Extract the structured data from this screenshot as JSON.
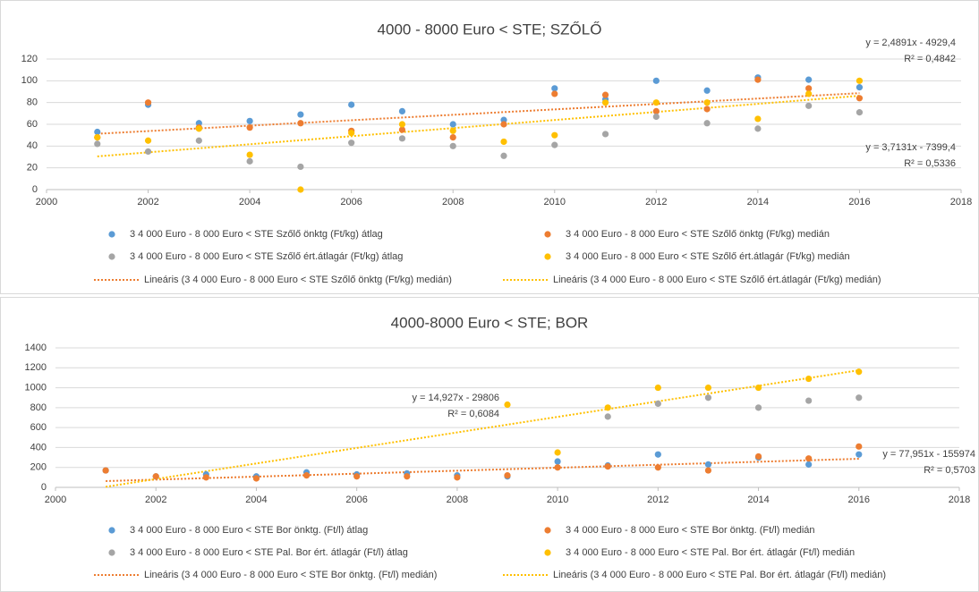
{
  "chart_data": [
    {
      "type": "scatter",
      "title": "4000 - 8000 Euro < STE; SZŐLŐ",
      "x": [
        2001,
        2002,
        2003,
        2004,
        2005,
        2006,
        2007,
        2008,
        2009,
        2010,
        2011,
        2012,
        2013,
        2014,
        2015,
        2016
      ],
      "xlim": [
        2000,
        2018
      ],
      "xticks": [
        2000,
        2002,
        2004,
        2006,
        2008,
        2010,
        2012,
        2014,
        2016,
        2018
      ],
      "ylim": [
        0,
        120
      ],
      "yticks": [
        0,
        20,
        40,
        60,
        80,
        100,
        120
      ],
      "grid": true,
      "series": [
        {
          "name": "3 4 000 Euro - 8 000 Euro < STE Szőlő önktg (Ft/kg) átlag",
          "color": "#5b9bd5",
          "values": [
            53,
            78,
            61,
            63,
            69,
            78,
            72,
            60,
            64,
            93,
            83,
            100,
            91,
            103,
            101,
            94
          ]
        },
        {
          "name": "3 4 000 Euro - 8 000 Euro < STE Szőlő önktg (Ft/kg) medián",
          "color": "#ed7d31",
          "values": [
            48,
            80,
            57,
            57,
            61,
            54,
            55,
            48,
            60,
            88,
            87,
            72,
            74,
            101,
            93,
            84
          ]
        },
        {
          "name": "3 4 000 Euro - 8 000 Euro < STE Szőlő ért.átlagár (Ft/kg) átlag",
          "color": "#a5a5a5",
          "values": [
            42,
            35,
            45,
            26,
            21,
            43,
            47,
            40,
            31,
            41,
            51,
            67,
            61,
            56,
            77,
            71
          ]
        },
        {
          "name": "3 4 000 Euro - 8 000 Euro < STE Szőlő ért.átlagár (Ft/kg) medián",
          "color": "#ffc000",
          "values": [
            48,
            45,
            56,
            32,
            0,
            52,
            60,
            54,
            44,
            50,
            80,
            80,
            80,
            65,
            88,
            100
          ]
        }
      ],
      "trendlines": [
        {
          "name": "Lineáris (3 4 000 Euro - 8 000 Euro < STE Szőlő önktg (Ft/kg) medián)",
          "color": "#ed7d31",
          "slope": 2.4891,
          "intercept": -4929.4,
          "equation": "y = 2,4891x - 4929,4",
          "r2": "R² = 0,4842"
        },
        {
          "name": "Lineáris (3 4 000 Euro - 8 000 Euro < STE Szőlő ért.átlagár (Ft/kg) medián)",
          "color": "#ffc000",
          "slope": 3.7131,
          "intercept": -7399.4,
          "equation": "y = 3,7131x - 7399,4",
          "r2": "R² = 0,5336"
        }
      ]
    },
    {
      "type": "scatter",
      "title": "4000-8000 Euro < STE; BOR",
      "x": [
        2001,
        2002,
        2003,
        2004,
        2005,
        2006,
        2007,
        2008,
        2009,
        2010,
        2011,
        2012,
        2013,
        2014,
        2015,
        2016
      ],
      "xlim": [
        2000,
        2018
      ],
      "xticks": [
        2000,
        2002,
        2004,
        2006,
        2008,
        2010,
        2012,
        2014,
        2016,
        2018
      ],
      "ylim": [
        0,
        1400
      ],
      "yticks": [
        0,
        200,
        400,
        600,
        800,
        1000,
        1200,
        1400
      ],
      "grid": true,
      "series": [
        {
          "name": "3 4 000 Euro - 8 000 Euro < STE Bor önktg. (Ft/l) átlag",
          "color": "#5b9bd5",
          "values": [
            170,
            110,
            130,
            110,
            150,
            130,
            140,
            120,
            110,
            260,
            220,
            330,
            230,
            300,
            230,
            330
          ]
        },
        {
          "name": "3 4 000 Euro - 8 000 Euro < STE Bor önktg. (Ft/l) medián",
          "color": "#ed7d31",
          "values": [
            170,
            110,
            100,
            90,
            120,
            110,
            110,
            100,
            120,
            200,
            210,
            200,
            170,
            310,
            290,
            410
          ]
        },
        {
          "name": "3 4 000 Euro - 8 000 Euro < STE Pal. Bor ért. átlagár (Ft/l) átlag",
          "color": "#a5a5a5",
          "values": [
            null,
            null,
            null,
            null,
            null,
            null,
            null,
            null,
            null,
            null,
            710,
            840,
            900,
            800,
            870,
            900
          ]
        },
        {
          "name": "3 4 000 Euro - 8 000 Euro < STE Pal. Bor ért. átlagár (Ft/l) medián",
          "color": "#ffc000",
          "values": [
            null,
            null,
            null,
            null,
            null,
            null,
            null,
            null,
            830,
            350,
            800,
            1000,
            1000,
            1000,
            1090,
            1160
          ]
        }
      ],
      "trendlines": [
        {
          "name": "Lineáris (3 4 000 Euro - 8 000 Euro < STE Bor önktg. (Ft/l) medián)",
          "color": "#ed7d31",
          "slope": 14.927,
          "intercept": -29806,
          "equation": "y = 14,927x - 29806",
          "r2": "R² = 0,6084"
        },
        {
          "name": "Lineáris (3 4 000 Euro - 8 000 Euro < STE Pal. Bor ért. átlagár (Ft/l) medián)",
          "color": "#ffc000",
          "slope": 77.951,
          "intercept": -155974,
          "equation": "y = 77,951x - 155974",
          "r2": "R² = 0,5703"
        }
      ]
    }
  ]
}
